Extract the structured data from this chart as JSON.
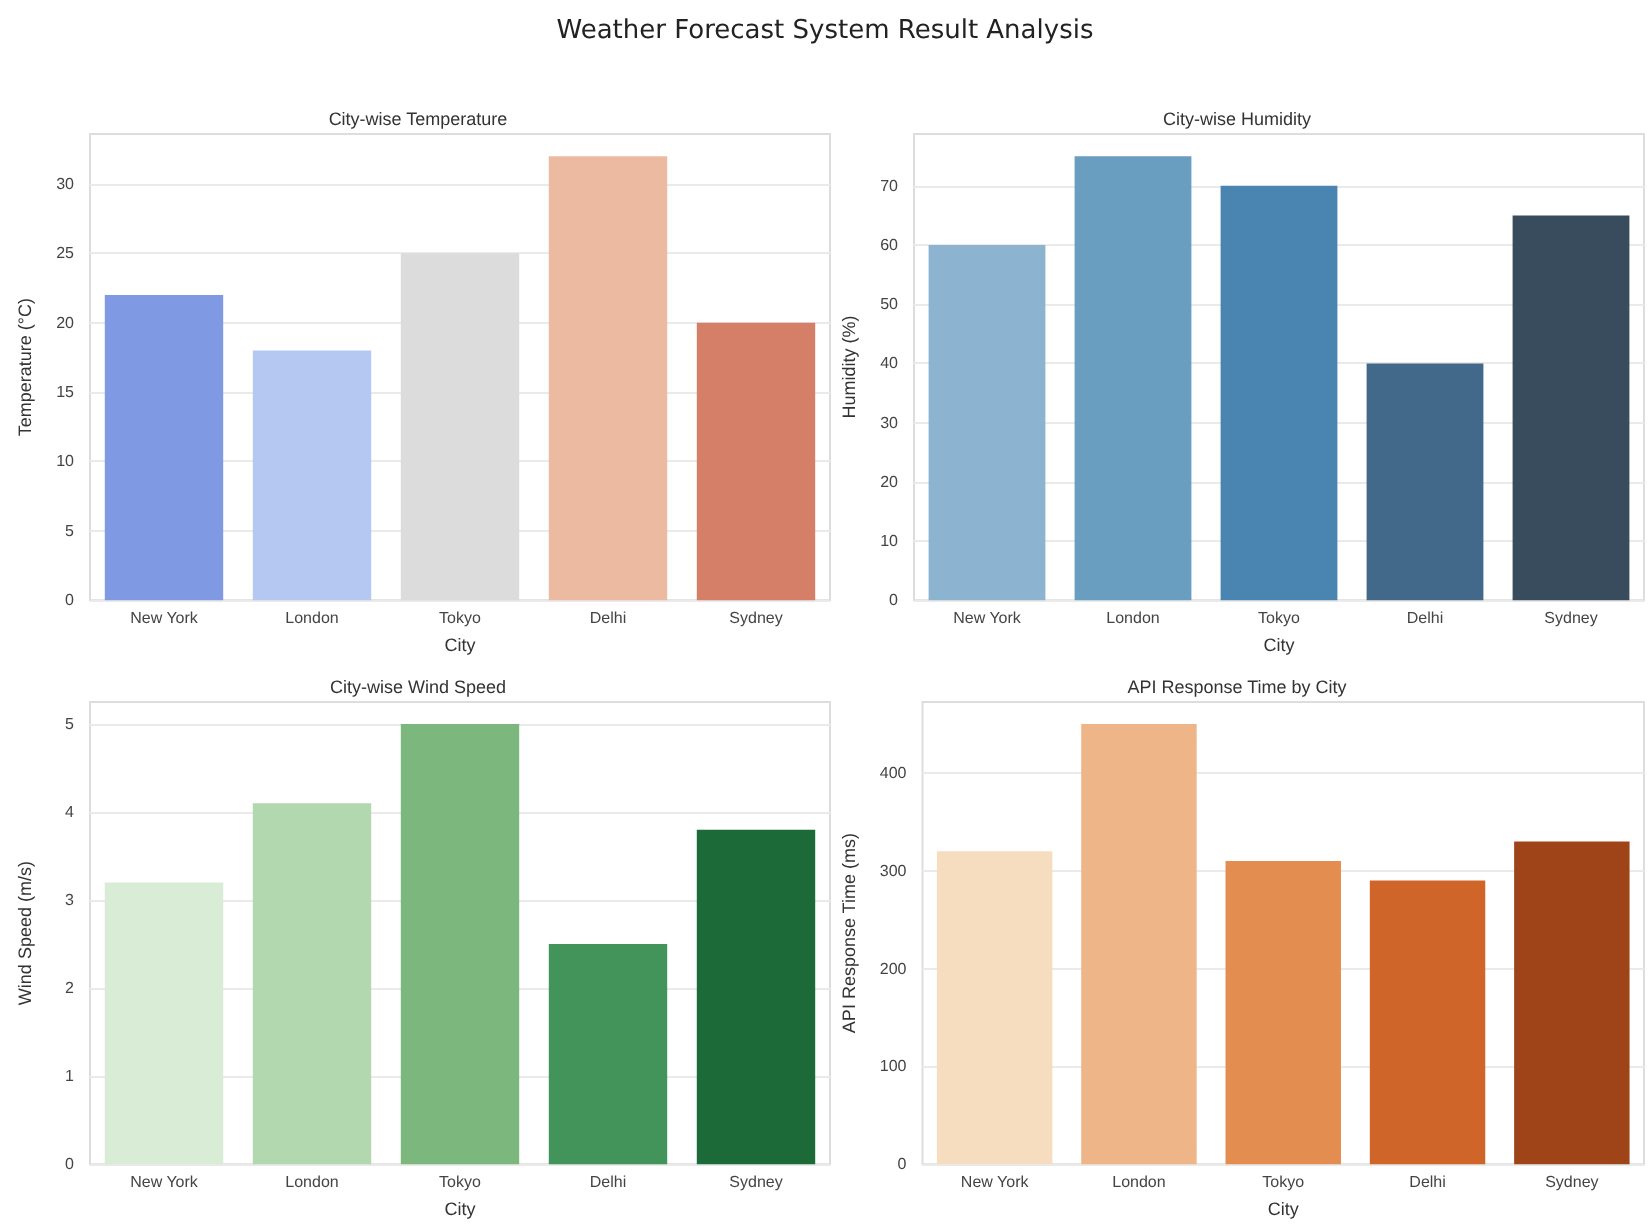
{
  "chart_data": [
    {
      "type": "bar",
      "title": "City-wise Temperature",
      "xlabel": "City",
      "ylabel": "Temperature (°C)",
      "annotations": [
        "Weather Forecast System Result Analysis"
      ],
      "categories": [
        "New York",
        "London",
        "Tokyo",
        "Delhi",
        "Sydney"
      ],
      "values": [
        22,
        18,
        25,
        32,
        20
      ],
      "colors": [
        "#7f9ae2",
        "#b4c8f2",
        "#dcdcdc",
        "#ecb9a1",
        "#d57e68"
      ],
      "ylim": [
        0,
        33.6
      ],
      "yticks": [
        0,
        5,
        10,
        15,
        20,
        25,
        30
      ],
      "grid": "y"
    },
    {
      "type": "bar",
      "title": "City-wise Humidity",
      "xlabel": "City",
      "ylabel": "Humidity (%)",
      "categories": [
        "New York",
        "London",
        "Tokyo",
        "Delhi",
        "Sydney"
      ],
      "values": [
        60,
        75,
        70,
        40,
        65
      ],
      "colors": [
        "#8cb3d0",
        "#6a9ec1",
        "#4a84b0",
        "#43698a",
        "#384c5e"
      ],
      "ylim": [
        0,
        78.75
      ],
      "yticks": [
        0,
        10,
        20,
        30,
        40,
        50,
        60,
        70
      ],
      "grid": "y"
    },
    {
      "type": "bar",
      "title": "City-wise Wind Speed",
      "xlabel": "City",
      "ylabel": "Wind Speed (m/s)",
      "categories": [
        "New York",
        "London",
        "Tokyo",
        "Delhi",
        "Sydney"
      ],
      "values": [
        3.2,
        4.1,
        5,
        2.5,
        3.8
      ],
      "colors": [
        "#d8ecd6",
        "#b1d8ae",
        "#7cb87e",
        "#42945b",
        "#1b6a37"
      ],
      "ylim": [
        0,
        5.25
      ],
      "yticks": [
        0,
        1,
        2,
        3,
        4,
        5
      ],
      "grid": "y"
    },
    {
      "type": "bar",
      "title": "API Response Time by City",
      "xlabel": "City",
      "ylabel": "API Response Time (ms)",
      "categories": [
        "New York",
        "London",
        "Tokyo",
        "Delhi",
        "Sydney"
      ],
      "values": [
        320,
        450,
        310,
        290,
        330
      ],
      "colors": [
        "#f7ddc0",
        "#edb588",
        "#e38d51",
        "#cf6529",
        "#9f4418"
      ],
      "ylim": [
        0,
        472.5
      ],
      "yticks": [
        0,
        100,
        200,
        300,
        400
      ],
      "grid": "y"
    }
  ]
}
